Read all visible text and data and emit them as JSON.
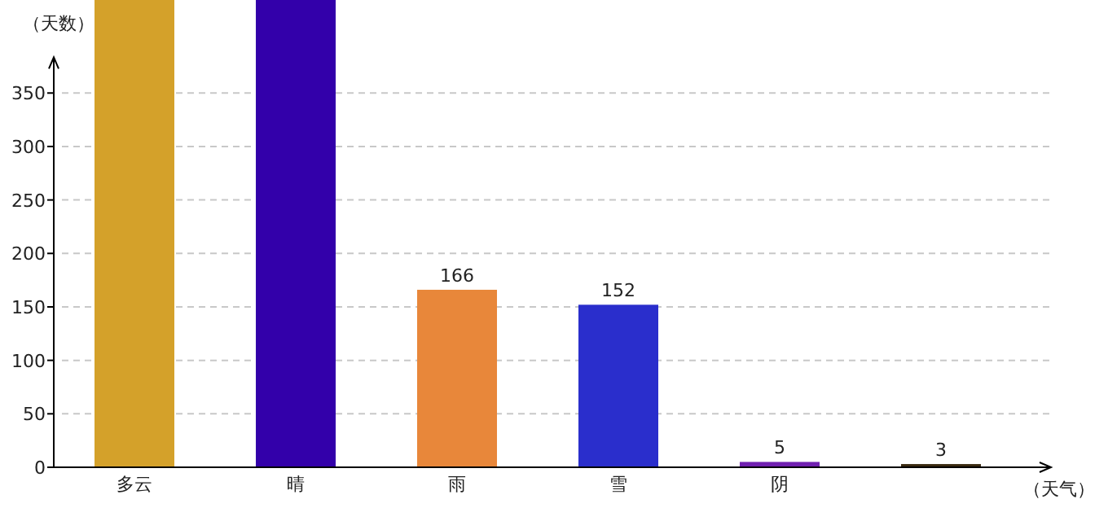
{
  "chart_data": {
    "type": "bar",
    "xlabel": "（天气）",
    "ylabel": "（天数）",
    "categories": [
      "多云",
      "晴",
      "雨",
      "雪",
      "阴",
      null
    ],
    "values": [
      437,
      437,
      166,
      152,
      5,
      3
    ],
    "colors": [
      "#d4a12a",
      "#3300aa",
      "#e8873a",
      "#2a2ecc",
      "#7020b0",
      "#3a2a10"
    ],
    "value_labels": [
      null,
      null,
      "166",
      "152",
      "5",
      "3"
    ],
    "ylim": [
      0,
      437
    ],
    "yticks": [
      0,
      50,
      100,
      150,
      200,
      250,
      300,
      350
    ],
    "grid": "y"
  }
}
